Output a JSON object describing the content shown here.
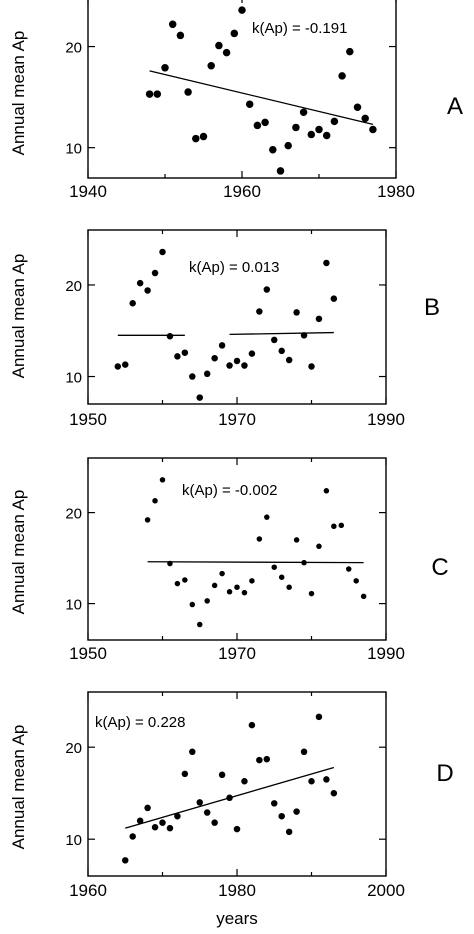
{
  "chart_data": [
    {
      "type": "scatter",
      "panel_label": "A",
      "ylabel": "Annual mean Ap",
      "xlabel": "",
      "annotation": "k(Ap) = -0.191",
      "xlim": [
        1940,
        1980
      ],
      "ylim": [
        7,
        25
      ],
      "xticks": [
        1940,
        1960,
        1980
      ],
      "yticks": [
        10,
        20
      ],
      "x": [
        1948,
        1949,
        1950,
        1951,
        1952,
        1953,
        1954,
        1955,
        1956,
        1957,
        1958,
        1959,
        1960,
        1961,
        1962,
        1963,
        1964,
        1965,
        1966,
        1967,
        1968,
        1969,
        1970,
        1971,
        1972,
        1973,
        1974,
        1975,
        1976,
        1977
      ],
      "y": [
        15.3,
        15.3,
        17.9,
        22.2,
        21.1,
        15.5,
        10.9,
        11.1,
        18.1,
        20.1,
        19.4,
        21.3,
        23.6,
        14.3,
        12.2,
        12.5,
        9.8,
        7.7,
        10.2,
        12.0,
        13.5,
        11.3,
        11.8,
        11.2,
        12.6,
        17.1,
        19.5,
        14.0,
        12.9,
        11.8
      ],
      "trend": {
        "x": [
          1948,
          1977
        ],
        "y": [
          17.6,
          12.3
        ]
      }
    },
    {
      "type": "scatter",
      "panel_label": "B",
      "ylabel": "Annual mean Ap",
      "xlabel": "",
      "annotation": "k(Ap) = 0.013",
      "xlim": [
        1950,
        1990
      ],
      "ylim": [
        7,
        26
      ],
      "xticks": [
        1950,
        1970,
        1990
      ],
      "yticks": [
        10,
        20
      ],
      "x": [
        1954,
        1955,
        1956,
        1957,
        1958,
        1959,
        1960,
        1961,
        1962,
        1963,
        1964,
        1965,
        1966,
        1967,
        1968,
        1969,
        1970,
        1971,
        1972,
        1973,
        1974,
        1975,
        1976,
        1977,
        1978,
        1979,
        1980,
        1981,
        1982,
        1983
      ],
      "y": [
        11.1,
        11.3,
        18.0,
        20.2,
        19.4,
        21.3,
        23.6,
        14.4,
        12.2,
        12.6,
        10.0,
        7.7,
        10.3,
        12.0,
        13.4,
        11.2,
        11.7,
        11.2,
        12.5,
        17.1,
        19.5,
        14.0,
        12.8,
        11.8,
        17.0,
        14.5,
        11.1,
        16.3,
        22.4,
        18.5
      ],
      "trend": [
        {
          "x": [
            1954,
            1963
          ],
          "y": [
            14.5,
            14.5
          ]
        },
        {
          "x": [
            1969,
            1983
          ],
          "y": [
            14.6,
            14.8
          ]
        }
      ]
    },
    {
      "type": "scatter",
      "panel_label": "C",
      "ylabel": "Annual mean Ap",
      "xlabel": "",
      "annotation": "k(Ap) = -0.002",
      "xlim": [
        1950,
        1990
      ],
      "ylim": [
        6,
        26
      ],
      "xticks": [
        1950,
        1970,
        1990
      ],
      "yticks": [
        10,
        20
      ],
      "x": [
        1958,
        1959,
        1960,
        1961,
        1962,
        1963,
        1964,
        1965,
        1966,
        1967,
        1968,
        1969,
        1970,
        1971,
        1972,
        1973,
        1974,
        1975,
        1976,
        1977,
        1978,
        1979,
        1980,
        1981,
        1982,
        1983,
        1984,
        1985,
        1986,
        1987
      ],
      "y": [
        19.2,
        21.3,
        23.6,
        14.4,
        12.2,
        12.6,
        9.9,
        7.7,
        10.3,
        12.0,
        13.3,
        11.3,
        11.8,
        11.2,
        12.5,
        17.1,
        19.5,
        14.0,
        12.9,
        11.8,
        17.0,
        14.5,
        11.1,
        16.3,
        22.4,
        18.5,
        18.6,
        13.8,
        12.5,
        10.8
      ],
      "trend": {
        "x": [
          1958,
          1987
        ],
        "y": [
          14.6,
          14.5
        ]
      }
    },
    {
      "type": "scatter",
      "panel_label": "D",
      "ylabel": "Annual mean Ap",
      "xlabel": "years",
      "annotation": "k(Ap) = 0.228",
      "xlim": [
        1960,
        2000
      ],
      "ylim": [
        6,
        26
      ],
      "xticks": [
        1960,
        1980,
        2000
      ],
      "yticks": [
        10,
        20
      ],
      "x": [
        1965,
        1966,
        1967,
        1968,
        1969,
        1970,
        1971,
        1972,
        1973,
        1974,
        1975,
        1976,
        1977,
        1978,
        1979,
        1980,
        1981,
        1982,
        1983,
        1984,
        1985,
        1986,
        1987,
        1988,
        1989,
        1990,
        1991,
        1992,
        1993
      ],
      "y": [
        7.7,
        10.3,
        12.0,
        13.4,
        11.3,
        11.8,
        11.2,
        12.5,
        17.1,
        19.5,
        14.0,
        12.9,
        11.8,
        17.0,
        14.5,
        11.1,
        16.3,
        22.4,
        18.6,
        18.7,
        13.9,
        12.5,
        10.8,
        13.0,
        19.5,
        16.3,
        23.3,
        16.5,
        15.0
      ],
      "trend": {
        "x": [
          1965,
          1993
        ],
        "y": [
          11.2,
          17.8
        ]
      }
    }
  ]
}
